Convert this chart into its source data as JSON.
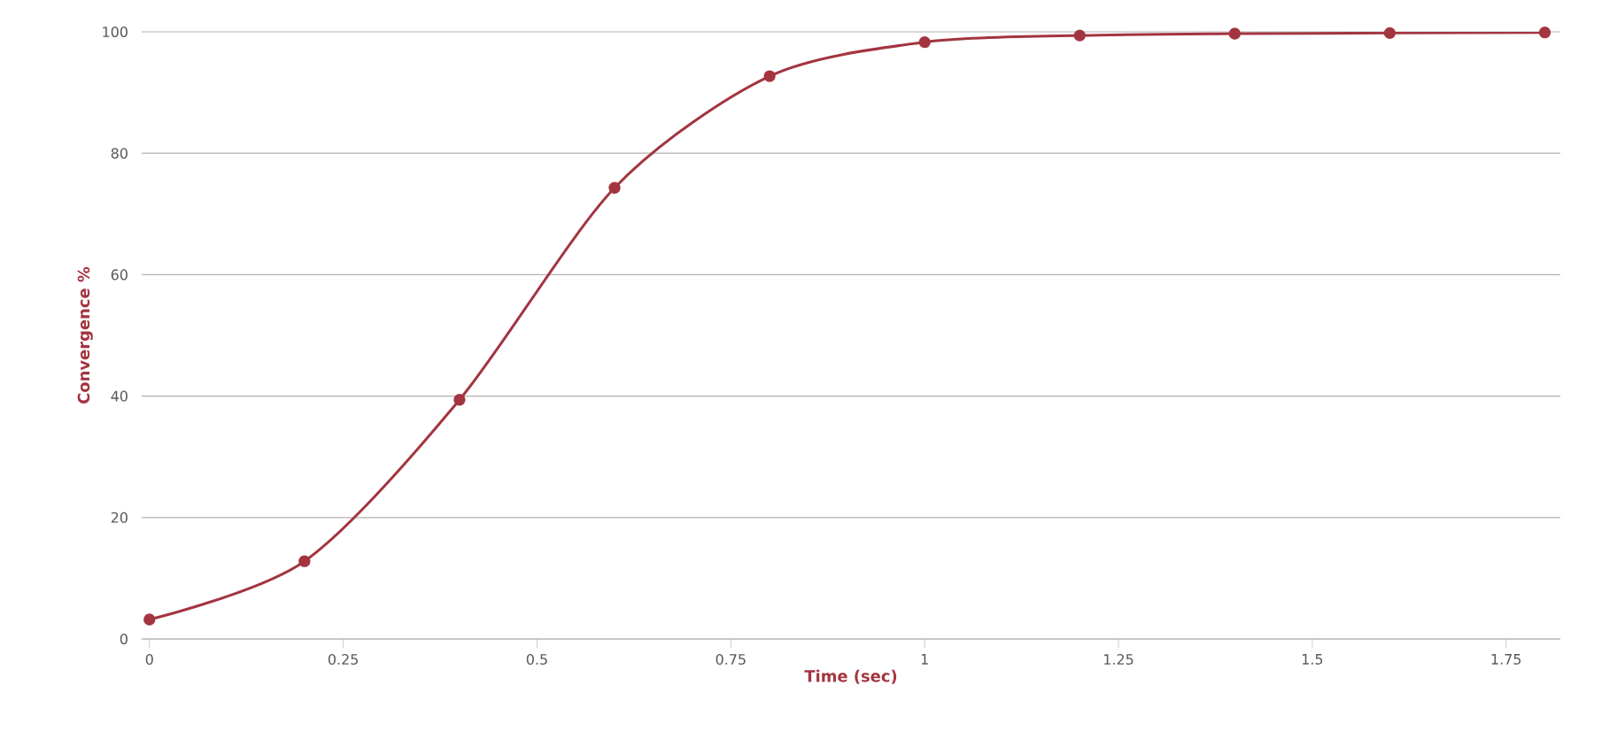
{
  "chart_data": {
    "type": "line",
    "xlabel": "Time (sec)",
    "ylabel": "Convergence %",
    "x": [
      0,
      0.2,
      0.4,
      0.6,
      0.8,
      1.0,
      1.2,
      1.4,
      1.6,
      1.8
    ],
    "series": [
      {
        "color": "#a33540",
        "values": [
          3.2,
          12.8,
          39.4,
          74.3,
          92.7,
          98.3,
          99.4,
          99.7,
          99.8,
          99.9
        ]
      }
    ],
    "xlim": [
      -0.01,
      1.82
    ],
    "ylim": [
      0,
      100
    ],
    "xticks": [
      0,
      0.25,
      0.5,
      0.75,
      1,
      1.25,
      1.5,
      1.75
    ],
    "yticks": [
      0,
      20,
      40,
      60,
      80,
      100
    ],
    "grid": "y",
    "marker": "circle",
    "line_style": "solid"
  }
}
